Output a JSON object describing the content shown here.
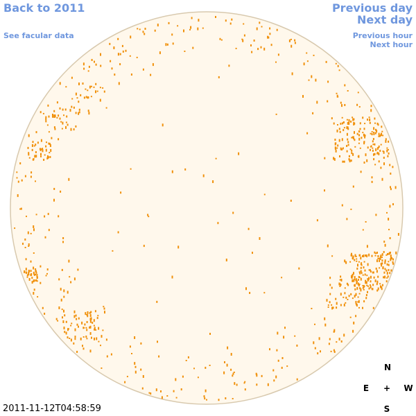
{
  "header": {
    "back_link": "Back to 2011",
    "facular_link": "See facular data"
  },
  "navigation": {
    "previous_day": "Previous day",
    "next_day": "Next day",
    "previous_hour": "Previous hour",
    "next_hour": "Next hour"
  },
  "timestamp": "2011-11-12T04:58:59",
  "compass": {
    "north": "N",
    "east": "E",
    "center": "+",
    "west": "W",
    "south": "S"
  }
}
